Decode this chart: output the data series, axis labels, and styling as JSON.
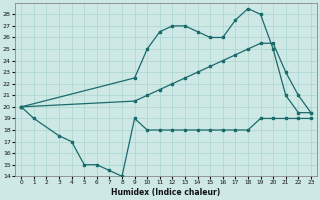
{
  "xlabel": "Humidex (Indice chaleur)",
  "xlim": [
    -0.5,
    23.5
  ],
  "ylim": [
    14,
    29
  ],
  "yticks": [
    14,
    15,
    16,
    17,
    18,
    19,
    20,
    21,
    22,
    23,
    24,
    25,
    26,
    27,
    28
  ],
  "xticks": [
    0,
    1,
    2,
    3,
    4,
    5,
    6,
    7,
    8,
    9,
    10,
    11,
    12,
    13,
    14,
    15,
    16,
    17,
    18,
    19,
    20,
    21,
    22,
    23
  ],
  "bg_color": "#cde8e5",
  "grid_color": "#b0d8d4",
  "line_color": "#1a6b6b",
  "line1_x": [
    0,
    1,
    3,
    4,
    5,
    6,
    7,
    8,
    9,
    10,
    11,
    12,
    13,
    14,
    15,
    16,
    17,
    18,
    19,
    20,
    21,
    22,
    23
  ],
  "line1_y": [
    20,
    19,
    17.5,
    17,
    15,
    15,
    14.5,
    14,
    19,
    18,
    18,
    18,
    18,
    18,
    18,
    18,
    18,
    18,
    19,
    19,
    19,
    19,
    19
  ],
  "line2_x": [
    0,
    9,
    10,
    11,
    12,
    13,
    14,
    15,
    16,
    17,
    18,
    19,
    20,
    21,
    22,
    23
  ],
  "line2_y": [
    20,
    22.5,
    25,
    26.5,
    27,
    27,
    26.5,
    26,
    26,
    27.5,
    28.5,
    28,
    25,
    21,
    19.5,
    19.5
  ],
  "line3_x": [
    0,
    9,
    10,
    11,
    12,
    13,
    14,
    15,
    16,
    17,
    18,
    19,
    20,
    21,
    22,
    23
  ],
  "line3_y": [
    20,
    20.5,
    21,
    21.5,
    22,
    22.5,
    23,
    23.5,
    24,
    24.5,
    25,
    25.5,
    25.5,
    23,
    21,
    19.5
  ]
}
